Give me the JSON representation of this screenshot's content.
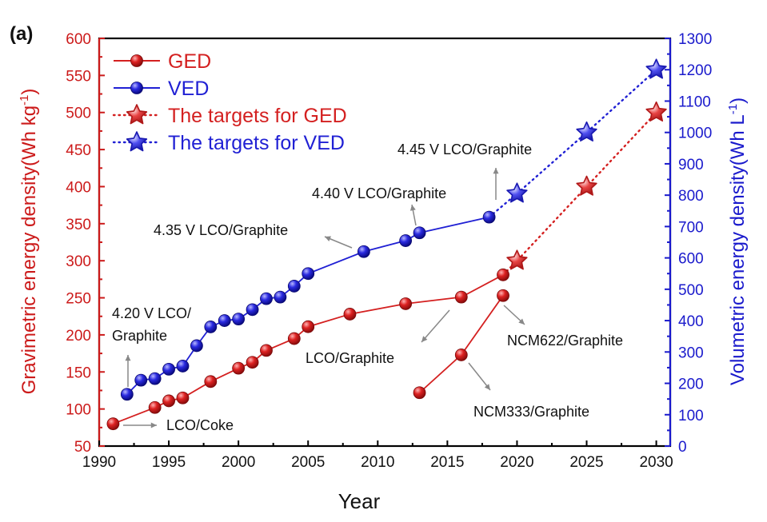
{
  "panel_label": "(a)",
  "chart_data": {
    "type": "line",
    "xlabel": "Year",
    "ylabel_left": "Gravimetric energy density(Wh kg",
    "ylabel_left_sup": "-1",
    "ylabel_left_close": ")",
    "ylabel_right": "Volumetric energy density(Wh L",
    "ylabel_right_sup": "-1",
    "ylabel_right_close": ")",
    "xlim": [
      1990,
      2031
    ],
    "ylim_left": [
      50,
      600
    ],
    "ylim_right": [
      0,
      1300
    ],
    "x_ticks": [
      1990,
      1995,
      2000,
      2005,
      2010,
      2015,
      2020,
      2025,
      2030
    ],
    "y_left_ticks": [
      50,
      100,
      150,
      200,
      250,
      300,
      350,
      400,
      450,
      500,
      550,
      600
    ],
    "y_right_ticks": [
      0,
      100,
      200,
      300,
      400,
      500,
      600,
      700,
      800,
      900,
      1000,
      1100,
      1200,
      1300
    ],
    "legend_position": "top-left",
    "colors": {
      "ged": "#d42020",
      "ved": "#2020d4",
      "left_axis": "#cc1a1a",
      "right_axis": "#1a1acc"
    },
    "series": [
      {
        "name": "GED",
        "axis": "left",
        "marker": "circle",
        "line": "solid",
        "points": [
          [
            1991,
            80
          ],
          [
            1994,
            102
          ],
          [
            1995,
            111
          ],
          [
            1996,
            115
          ],
          [
            1998,
            137
          ],
          [
            2000,
            155
          ],
          [
            2001,
            163
          ],
          [
            2002,
            179
          ],
          [
            2004,
            195
          ],
          [
            2005,
            211
          ],
          [
            2008,
            228
          ],
          [
            2012,
            242
          ],
          [
            2016,
            251
          ],
          [
            2019,
            281
          ]
        ]
      },
      {
        "name": "",
        "axis": "left",
        "marker": "circle",
        "line": "solid",
        "points": [
          [
            2013,
            122
          ],
          [
            2016,
            173
          ],
          [
            2019,
            253
          ]
        ]
      },
      {
        "name": "VED",
        "axis": "right",
        "marker": "circle",
        "line": "solid",
        "points": [
          [
            1992,
            165
          ],
          [
            1993,
            210
          ],
          [
            1994,
            215
          ],
          [
            1995,
            245
          ],
          [
            1996,
            255
          ],
          [
            1997,
            320
          ],
          [
            1998,
            380
          ],
          [
            1999,
            400
          ],
          [
            2000,
            405
          ],
          [
            2001,
            435
          ],
          [
            2002,
            470
          ],
          [
            2003,
            475
          ],
          [
            2004,
            510
          ],
          [
            2005,
            550
          ],
          [
            2009,
            620
          ],
          [
            2012,
            655
          ],
          [
            2013,
            680
          ],
          [
            2018,
            730
          ]
        ]
      },
      {
        "name": "The targets for GED",
        "axis": "left",
        "marker": "star",
        "line": "dotted",
        "points": [
          [
            2020,
            300
          ],
          [
            2025,
            400
          ],
          [
            2030,
            500
          ]
        ]
      },
      {
        "name": "The targets for VED",
        "axis": "right",
        "marker": "star",
        "line": "dotted",
        "points": [
          [
            2020,
            805
          ],
          [
            2025,
            1000
          ],
          [
            2030,
            1200
          ]
        ]
      }
    ],
    "annotations": [
      {
        "text": "4.45 V LCO/Graphite",
        "x": 2018,
        "y_right": 730
      },
      {
        "text": "4.40 V LCO/Graphite",
        "x": 2013,
        "y_right": 680
      },
      {
        "text": "4.35 V LCO/Graphite",
        "x": 2009,
        "y_right": 620
      },
      {
        "text": "4.20 V LCO/",
        "text2": "Graphite",
        "x": 1992,
        "y_right": 165
      },
      {
        "text": "LCO/Graphite",
        "x": 2016,
        "y_left": 251
      },
      {
        "text": "NCM622/Graphite",
        "x": 2019,
        "y_left": 253
      },
      {
        "text": "NCM333/Graphite",
        "x": 2016,
        "y_left": 173
      },
      {
        "text": "LCO/Coke",
        "x": 1991,
        "y_left": 80
      }
    ]
  }
}
